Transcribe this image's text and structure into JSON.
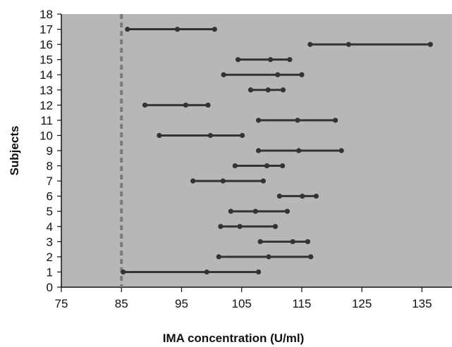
{
  "chart_data": {
    "type": "range-plot",
    "xlabel": "IMA concentration (U/ml)",
    "ylabel": "Subjects",
    "xlim": [
      75,
      140
    ],
    "ylim": [
      0,
      18
    ],
    "x_ticks": [
      75,
      85,
      95,
      105,
      115,
      125,
      135
    ],
    "y_ticks": [
      0,
      1,
      2,
      3,
      4,
      5,
      6,
      7,
      8,
      9,
      10,
      11,
      12,
      13,
      14,
      15,
      16,
      17,
      18
    ],
    "reference_line": {
      "x": 85,
      "style": "dashed"
    },
    "plot_background": "#b7b7b7",
    "line_color": "#333333",
    "reference_color": "#7a7a7a",
    "subjects": [
      {
        "subject": 1,
        "values": [
          85.3,
          99.2,
          107.8
        ]
      },
      {
        "subject": 2,
        "values": [
          101.2,
          109.5,
          116.5
        ]
      },
      {
        "subject": 3,
        "values": [
          108.1,
          113.5,
          116.0
        ]
      },
      {
        "subject": 4,
        "values": [
          101.5,
          104.7,
          110.6
        ]
      },
      {
        "subject": 5,
        "values": [
          103.2,
          107.3,
          112.6
        ]
      },
      {
        "subject": 6,
        "values": [
          111.3,
          115.1,
          117.4
        ]
      },
      {
        "subject": 7,
        "values": [
          96.9,
          101.9,
          108.6
        ]
      },
      {
        "subject": 8,
        "values": [
          103.9,
          109.2,
          111.8
        ]
      },
      {
        "subject": 9,
        "values": [
          107.8,
          114.5,
          121.6
        ]
      },
      {
        "subject": 10,
        "values": [
          91.3,
          99.8,
          105.1
        ]
      },
      {
        "subject": 11,
        "values": [
          107.8,
          114.3,
          120.6
        ]
      },
      {
        "subject": 12,
        "values": [
          88.9,
          95.7,
          99.4
        ]
      },
      {
        "subject": 13,
        "values": [
          106.5,
          109.4,
          111.9
        ]
      },
      {
        "subject": 14,
        "values": [
          102.0,
          111.0,
          115.0
        ]
      },
      {
        "subject": 15,
        "values": [
          104.4,
          109.8,
          113.0
        ]
      },
      {
        "subject": 16,
        "values": [
          116.4,
          122.8,
          136.4
        ]
      },
      {
        "subject": 17,
        "values": [
          86.0,
          94.3,
          100.5
        ]
      }
    ]
  }
}
